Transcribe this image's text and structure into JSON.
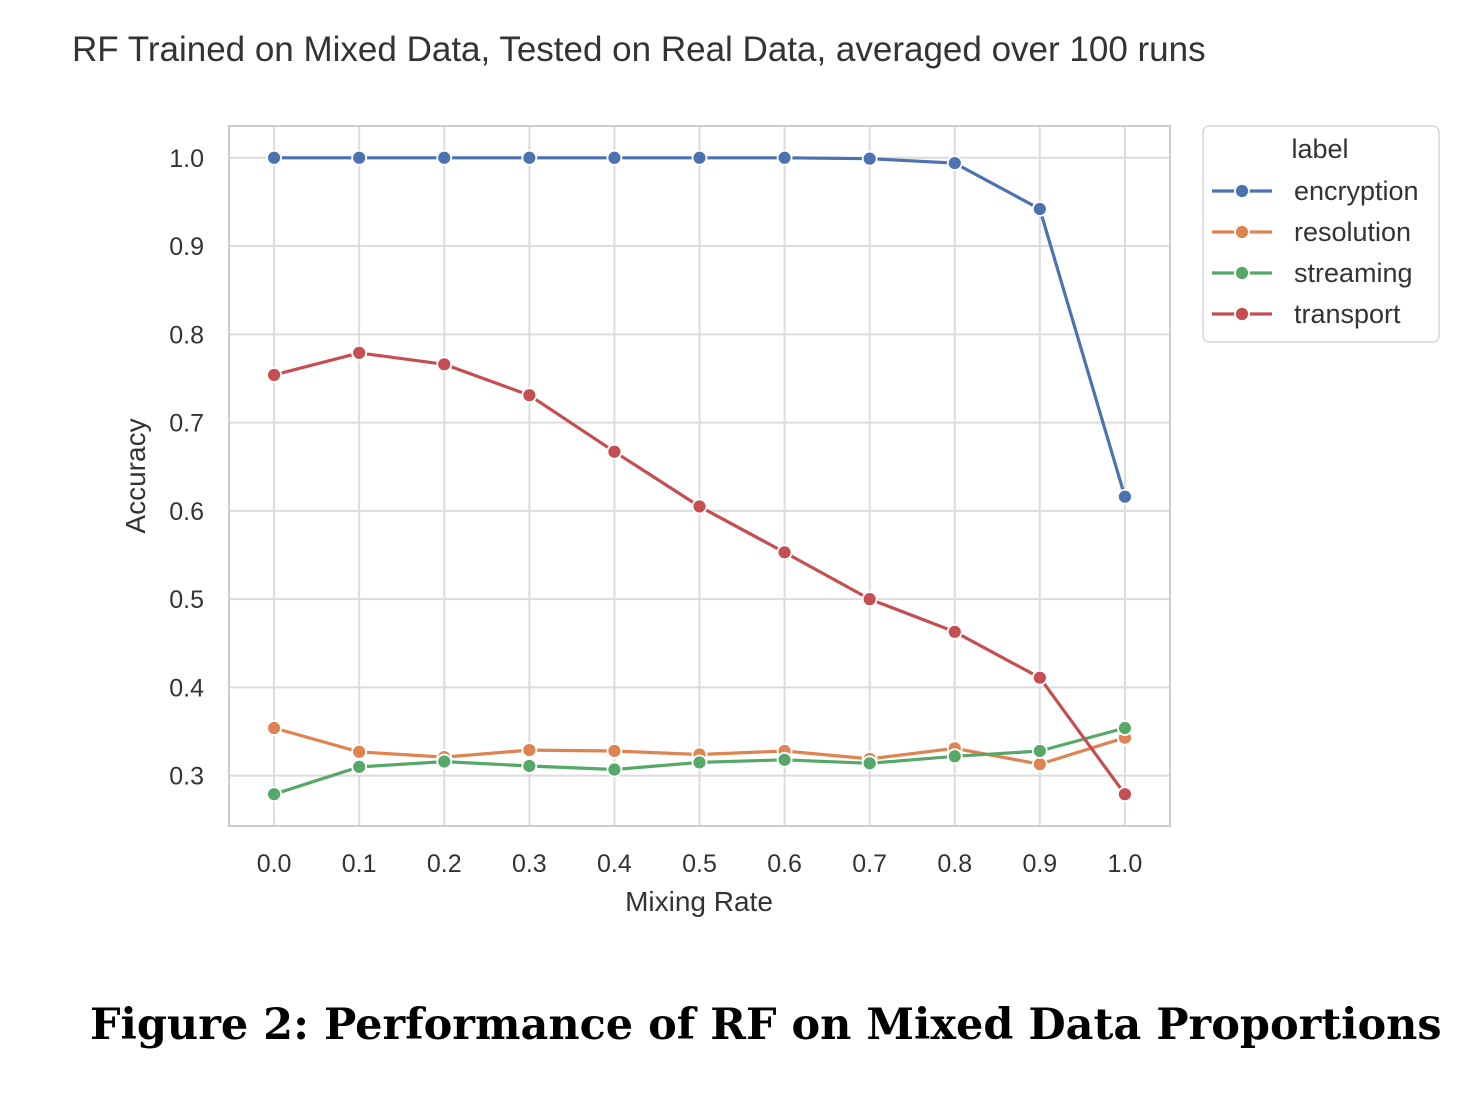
{
  "chart_data": {
    "type": "line",
    "title": "RF Trained on Mixed Data, Tested on Real Data, averaged over 100 runs",
    "xlabel": "Mixing Rate",
    "ylabel": "Accuracy",
    "x": [
      0.0,
      0.1,
      0.2,
      0.3,
      0.4,
      0.5,
      0.6,
      0.7,
      0.8,
      0.9,
      1.0
    ],
    "x_tick_labels": [
      "0.0",
      "0.1",
      "0.2",
      "0.3",
      "0.4",
      "0.5",
      "0.6",
      "0.7",
      "0.8",
      "0.9",
      "1.0"
    ],
    "y_ticks": [
      0.3,
      0.4,
      0.5,
      0.6,
      0.7,
      0.8,
      0.9,
      1.0
    ],
    "y_tick_labels": [
      "0.3",
      "0.4",
      "0.5",
      "0.6",
      "0.7",
      "0.8",
      "0.9",
      "1.0"
    ],
    "xlim": [
      -0.053,
      1.053
    ],
    "ylim": [
      0.243,
      1.036
    ],
    "grid": true,
    "legend": {
      "title": "label",
      "placement": "outside-top-right"
    },
    "series": [
      {
        "name": "encryption",
        "color": "#4c72b0",
        "values": [
          1.0,
          1.0,
          1.0,
          1.0,
          1.0,
          1.0,
          1.0,
          0.999,
          0.994,
          0.942,
          0.616
        ]
      },
      {
        "name": "resolution",
        "color": "#dd8452",
        "values": [
          0.354,
          0.327,
          0.321,
          0.329,
          0.328,
          0.324,
          0.328,
          0.319,
          0.331,
          0.313,
          0.343
        ]
      },
      {
        "name": "streaming",
        "color": "#55a868",
        "values": [
          0.279,
          0.31,
          0.316,
          0.311,
          0.307,
          0.315,
          0.318,
          0.314,
          0.322,
          0.328,
          0.354
        ]
      },
      {
        "name": "transport",
        "color": "#c44e52",
        "values": [
          0.754,
          0.779,
          0.766,
          0.731,
          0.667,
          0.605,
          0.553,
          0.5,
          0.463,
          0.411,
          0.279
        ]
      }
    ]
  },
  "caption": "Figure 2: Performance of RF on Mixed Data Proportions"
}
